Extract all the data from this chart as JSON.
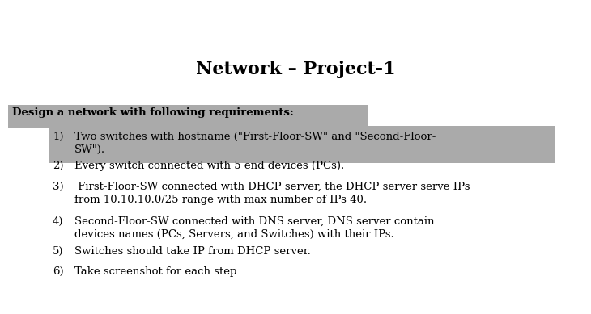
{
  "title": "Network – Project-1",
  "title_fontsize": 16,
  "title_fontweight": "bold",
  "bg_color": "#ffffff",
  "highlight_color": "#aaaaaa",
  "heading": "Design a network with following requirements:",
  "heading_fontsize": 9.5,
  "heading_fontweight": "bold",
  "items": [
    "Two switches with hostname (\"First-Floor-SW\" and \"Second-Floor-\nSW\").",
    "Every switch connected with 5 end devices (PCs).",
    " First-Floor-SW connected with DHCP server, the DHCP server serve IPs\nfrom 10.10.10.0/25 range with max number of IPs 40.",
    "Second-Floor-SW connected with DNS server, DNS server contain\ndevices names (PCs, Servers, and Switches) with their IPs.",
    "Switches should take IP from DHCP server.",
    "Take screenshot for each step"
  ],
  "item_fontsize": 9.5,
  "font_family": "DejaVu Serif",
  "fig_width": 7.3,
  "fig_height": 3.89,
  "dpi": 100
}
